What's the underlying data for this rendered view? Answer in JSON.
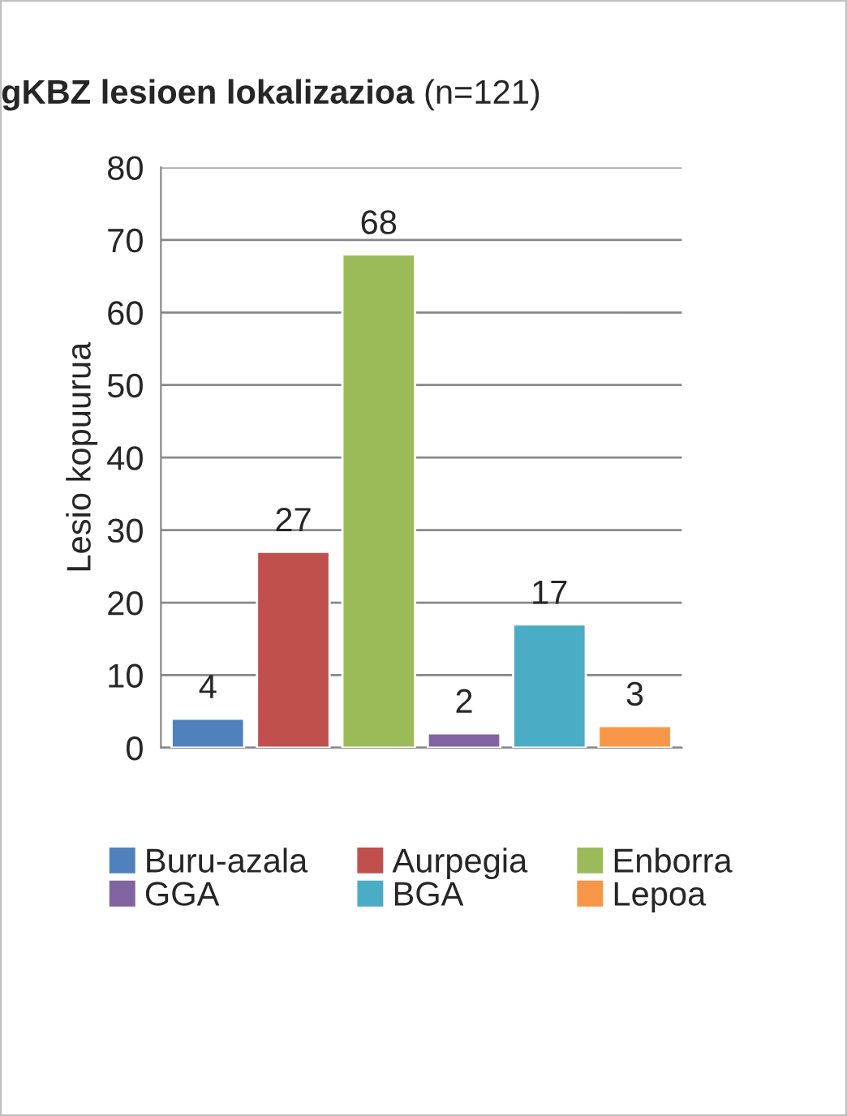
{
  "chart_data": {
    "type": "bar",
    "title": "gKBZ lesioen lokalizazioa",
    "subtitle": "(n=121)",
    "ylabel": "Lesio kopuurua",
    "categories": [
      null,
      null,
      null,
      null,
      null,
      null
    ],
    "series": [
      {
        "name": "Buru-azala",
        "color": "#4f81bd",
        "values": [
          4,
          null,
          null,
          null,
          null,
          null
        ]
      },
      {
        "name": "Aurpegia",
        "color": "#c0504d",
        "values": [
          null,
          27,
          null,
          null,
          null,
          null
        ]
      },
      {
        "name": "Enborra",
        "color": "#9bbb59",
        "values": [
          null,
          null,
          68,
          null,
          null,
          null
        ]
      },
      {
        "name": "GGA",
        "color": "#8064a2",
        "values": [
          null,
          null,
          null,
          2,
          null,
          null
        ]
      },
      {
        "name": "BGA",
        "color": "#4bacc6",
        "values": [
          null,
          null,
          null,
          null,
          17,
          null
        ]
      },
      {
        "name": "Lepoa",
        "color": "#f79646",
        "values": [
          null,
          null,
          null,
          null,
          null,
          3
        ]
      }
    ],
    "ylim": [
      0,
      80
    ],
    "yticks": [
      0,
      10,
      20,
      30,
      40,
      50,
      60,
      70,
      80
    ],
    "grid": "y",
    "legend": "bottom",
    "data_labels": true
  }
}
